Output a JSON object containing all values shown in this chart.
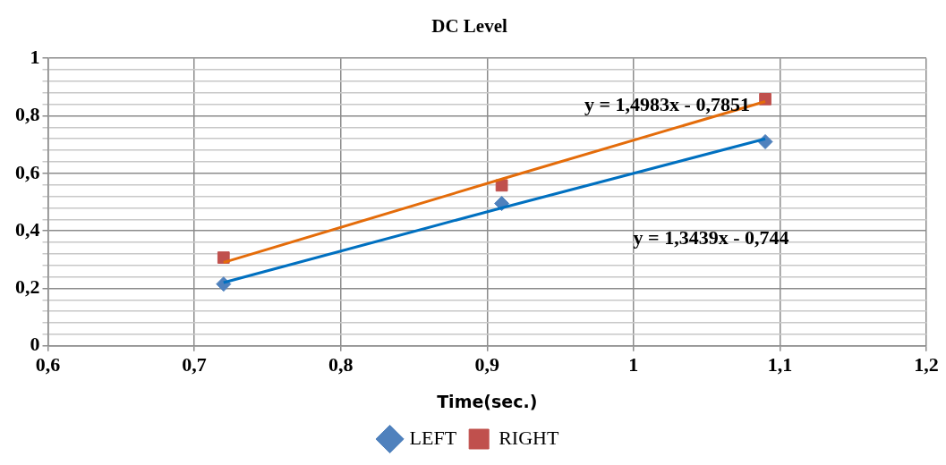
{
  "chart_data": {
    "type": "scatter",
    "title": "DC Level",
    "xlabel": "Time(sec.)",
    "x": [
      0.72,
      0.91,
      1.09
    ],
    "series": [
      {
        "name": "LEFT",
        "color": "#4f81bd",
        "marker": "diamond",
        "values": [
          0.215,
          0.495,
          0.71
        ]
      },
      {
        "name": "RIGHT",
        "color": "#c0504d",
        "marker": "square",
        "values": [
          0.307,
          0.558,
          0.858
        ]
      },
      {
        "type": "line",
        "color": "#0070c0",
        "marker": "none",
        "values": [
          0.22,
          0.48,
          0.72
        ]
      },
      {
        "type": "line",
        "color": "#e46c0a",
        "marker": "none",
        "values": [
          0.29,
          0.58,
          0.85
        ]
      }
    ],
    "annotations": [
      "y = 1,4983x - 0,7851",
      "y = 1,3439x - 0,744"
    ],
    "xlim": [
      0.6,
      1.2
    ],
    "xticks": [
      {
        "value": 0.6,
        "label": "0,6"
      },
      {
        "value": 0.7,
        "label": "0,7"
      },
      {
        "value": 0.8,
        "label": "0,8"
      },
      {
        "value": 0.9,
        "label": "0,9"
      },
      1,
      {
        "value": 1.1,
        "label": "1,1"
      },
      {
        "value": 1.2,
        "label": "1,2"
      }
    ],
    "ylim": [
      0,
      1
    ],
    "yticks": [
      0,
      {
        "value": 0.04,
        "label": null
      },
      {
        "value": 0.08,
        "label": null
      },
      {
        "value": 0.12,
        "label": null
      },
      {
        "value": 0.16,
        "label": null
      },
      {
        "value": 0.2,
        "label": "0,2"
      },
      {
        "value": 0.24,
        "label": null
      },
      {
        "value": 0.28,
        "label": null
      },
      {
        "value": 0.32,
        "label": null
      },
      {
        "value": 0.36,
        "label": null
      },
      {
        "value": 0.4,
        "label": "0,4"
      },
      {
        "value": 0.44,
        "label": null
      },
      {
        "value": 0.48,
        "label": null
      },
      {
        "value": 0.52,
        "label": null
      },
      {
        "value": 0.56,
        "label": null
      },
      {
        "value": 0.6,
        "label": "0,6"
      },
      {
        "value": 0.64,
        "label": null
      },
      {
        "value": 0.68,
        "label": null
      },
      {
        "value": 0.72,
        "label": null
      },
      {
        "value": 0.76,
        "label": null
      },
      {
        "value": 0.8,
        "label": "0,8"
      },
      {
        "value": 0.84,
        "label": null
      },
      {
        "value": 0.88,
        "label": null
      },
      {
        "value": 0.92,
        "label": null
      },
      {
        "value": 0.96,
        "label": null
      },
      1
    ],
    "grid": true,
    "legend": "bottom"
  }
}
